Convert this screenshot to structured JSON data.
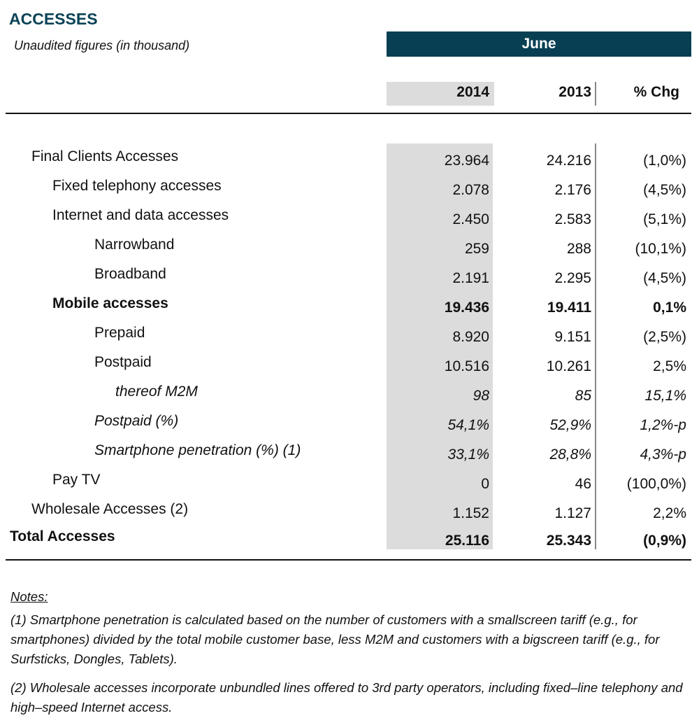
{
  "title": "ACCESSES",
  "subtitle": "Unaudited figures (in thousand)",
  "period": "June",
  "columns": [
    "2014",
    "2013",
    "% Chg"
  ],
  "rows": [
    {
      "label": "Final Clients Accesses",
      "level": 0,
      "style": "",
      "v2014": "23.964",
      "v2013": "24.216",
      "chg": "(1,0%)"
    },
    {
      "label": "Fixed telephony accesses",
      "level": 1,
      "style": "",
      "v2014": "2.078",
      "v2013": "2.176",
      "chg": "(4,5%)"
    },
    {
      "label": "Internet and data accesses",
      "level": 1,
      "style": "",
      "v2014": "2.450",
      "v2013": "2.583",
      "chg": "(5,1%)"
    },
    {
      "label": "Narrowband",
      "level": 2,
      "style": "",
      "v2014": "259",
      "v2013": "288",
      "chg": "(10,1%)"
    },
    {
      "label": "Broadband",
      "level": 2,
      "style": "",
      "v2014": "2.191",
      "v2013": "2.295",
      "chg": "(4,5%)"
    },
    {
      "label": "Mobile accesses",
      "level": 1,
      "style": "bold",
      "v2014": "19.436",
      "v2013": "19.411",
      "chg": "0,1%"
    },
    {
      "label": "Prepaid",
      "level": 2,
      "style": "",
      "v2014": "8.920",
      "v2013": "9.151",
      "chg": "(2,5%)"
    },
    {
      "label": "Postpaid",
      "level": 2,
      "style": "",
      "v2014": "10.516",
      "v2013": "10.261",
      "chg": "2,5%"
    },
    {
      "label": "thereof M2M",
      "level": 3,
      "style": "ital",
      "v2014": "98",
      "v2013": "85",
      "chg": "15,1%"
    },
    {
      "label": "Postpaid (%)",
      "level": 2,
      "style": "ital",
      "v2014": "54,1%",
      "v2013": "52,9%",
      "chg": "1,2%-p"
    },
    {
      "label": "Smartphone penetration (%) (1)",
      "level": 2,
      "style": "ital",
      "v2014": "33,1%",
      "v2013": "28,8%",
      "chg": "4,3%-p"
    },
    {
      "label": "Pay TV",
      "level": 1,
      "style": "",
      "v2014": "0",
      "v2013": "46",
      "chg": "(100,0%)"
    },
    {
      "label": "Wholesale Accesses (2)",
      "level": 0,
      "style": "",
      "v2014": "1.152",
      "v2013": "1.127",
      "chg": "2,2%"
    },
    {
      "label": "Total Accesses",
      "level": -1,
      "style": "bold",
      "v2014": "25.116",
      "v2013": "25.343",
      "chg": "(0,9%)"
    }
  ],
  "notes": {
    "heading": "Notes:",
    "items": [
      "(1) Smartphone penetration is calculated based on the number of customers with a smallscreen tariff (e.g., for smartphones) divided by the total mobile customer base, less M2M and customers with a bigscreen tariff (e.g., for Surfsticks, Dongles, Tablets).",
      "(2) Wholesale accesses incorporate unbundled lines offered to 3rd party operators, including fixed–line telephony and high–speed Internet access."
    ]
  }
}
